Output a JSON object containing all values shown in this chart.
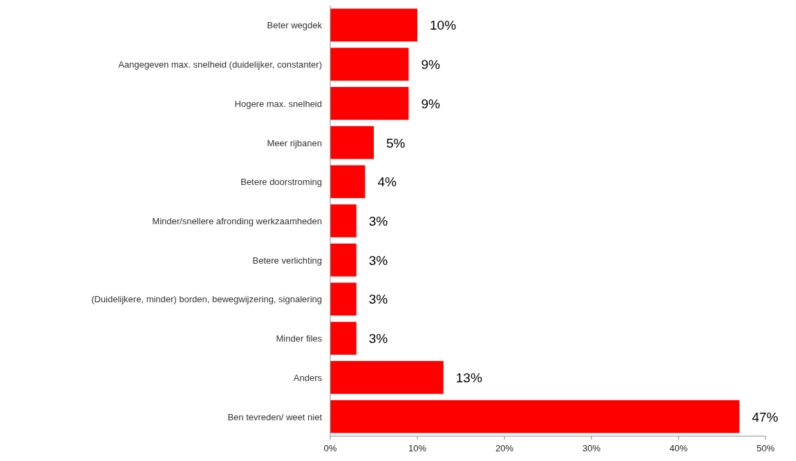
{
  "chart_data": {
    "type": "bar",
    "orientation": "horizontal",
    "categories": [
      "Beter wegdek",
      "Aangegeven max. snelheid (duidelijker, constanter)",
      "Hogere max. snelheid",
      "Meer rijbanen",
      "Betere doorstroming",
      "Minder/snellere afronding werkzaamheden",
      "Betere verlichting",
      "(Duidelijkere, minder) borden, bewegwijzering, signalering",
      "Minder files",
      "Anders",
      "Ben tevreden/ weet niet"
    ],
    "values": [
      10,
      9,
      9,
      5,
      4,
      3,
      3,
      3,
      3,
      13,
      47
    ],
    "value_labels": [
      "10%",
      "9%",
      "9%",
      "5%",
      "4%",
      "3%",
      "3%",
      "3%",
      "3%",
      "13%",
      "47%"
    ],
    "color": "#ff0000",
    "xlim": [
      0,
      50
    ],
    "xticks": [
      {
        "value": 0,
        "label": "0%"
      },
      {
        "value": 10,
        "label": "10%"
      },
      {
        "value": 20,
        "label": "20%"
      },
      {
        "value": 30,
        "label": "30%"
      },
      {
        "value": 40,
        "label": "40%"
      },
      {
        "value": 50,
        "label": "50%"
      }
    ],
    "grid": false
  }
}
